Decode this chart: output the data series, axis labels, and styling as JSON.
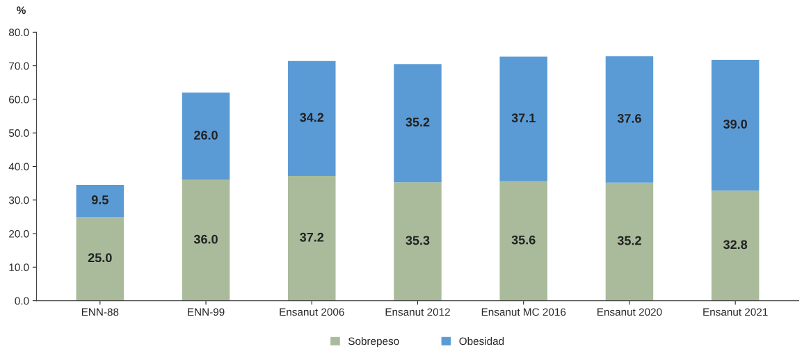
{
  "chart_data": {
    "type": "bar",
    "stacked": true,
    "ylabel": "%",
    "categories": [
      "ENN-88",
      "ENN-99",
      "Ensanut 2006",
      "Ensanut 2012",
      "Ensanut MC 2016",
      "Ensanut 2020",
      "Ensanut 2021"
    ],
    "series": [
      {
        "name": "Sobrepeso",
        "color": "#a9bb9b",
        "values": [
          25.0,
          36.0,
          37.2,
          35.3,
          35.6,
          35.2,
          32.8
        ],
        "value_labels": [
          "25.0",
          "36.0",
          "37.2",
          "35.3",
          "35.6",
          "35.2",
          "32.8"
        ]
      },
      {
        "name": "Obesidad",
        "color": "#5b9bd5",
        "values": [
          9.5,
          26.0,
          34.2,
          35.2,
          37.1,
          37.6,
          39.0
        ],
        "value_labels": [
          "9.5",
          "26.0",
          "34.2",
          "35.2",
          "37.1",
          "37.6",
          "39.0"
        ]
      }
    ],
    "ylim": [
      0,
      80
    ],
    "yticks": [
      {
        "value": 0,
        "label": "0.0"
      },
      {
        "value": 10,
        "label": "10.0"
      },
      {
        "value": 20,
        "label": "20.0"
      },
      {
        "value": 30,
        "label": "30.0"
      },
      {
        "value": 40,
        "label": "40.0"
      },
      {
        "value": 50,
        "label": "50.0"
      },
      {
        "value": 60,
        "label": "60.0"
      },
      {
        "value": 70,
        "label": "70.0"
      },
      {
        "value": 80,
        "label": "80.0"
      }
    ],
    "grid": false,
    "legend": "bottom"
  }
}
